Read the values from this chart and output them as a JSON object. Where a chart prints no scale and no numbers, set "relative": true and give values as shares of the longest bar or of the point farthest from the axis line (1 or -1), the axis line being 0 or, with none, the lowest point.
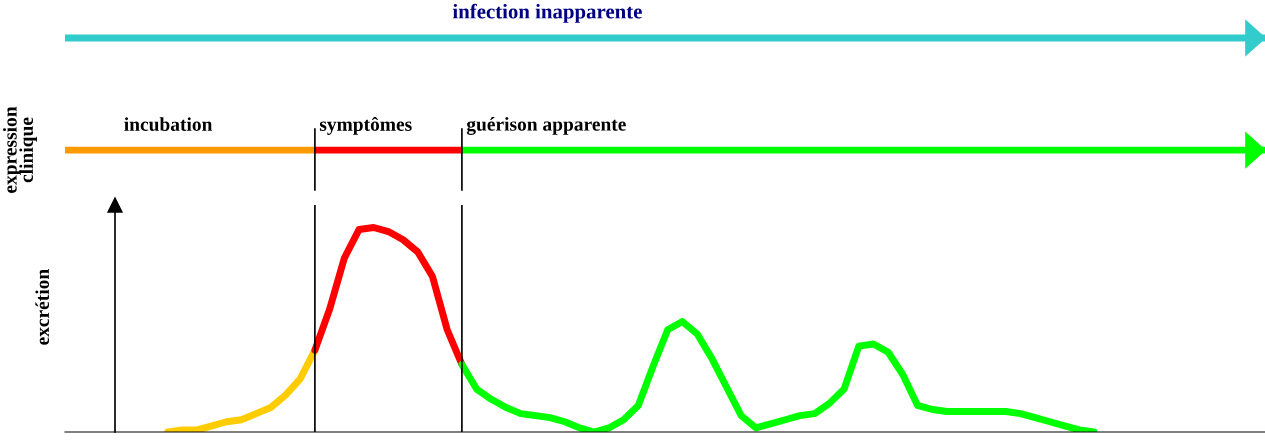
{
  "chart_data": [
    {
      "type": "line",
      "relative": true,
      "ylabel": "excrétion",
      "grid": false,
      "line_style": "solid",
      "categories": [
        null,
        null,
        null,
        null,
        null,
        null,
        null,
        null,
        null,
        null,
        null,
        null,
        null,
        null,
        null,
        null,
        null,
        null,
        null,
        null,
        null,
        null,
        null,
        null,
        null,
        null,
        null,
        null,
        null,
        null,
        null,
        null,
        null,
        null,
        null,
        null,
        null,
        null,
        null,
        null,
        null,
        null,
        null,
        null,
        null,
        null,
        null,
        null,
        null,
        null,
        null,
        null,
        null,
        null,
        null,
        null,
        null,
        null,
        null,
        null,
        null,
        null,
        null,
        null,
        null,
        null,
        null,
        null,
        null,
        null,
        null,
        null,
        null,
        null,
        null,
        null,
        null,
        null,
        null,
        null,
        null,
        null
      ],
      "series": [
        {
          "color": "#ffcc00",
          "values": [
            null,
            null,
            null,
            null,
            null,
            null,
            null,
            0,
            0.01,
            0.01,
            0.03,
            0.05,
            0.06,
            0.09,
            0.12,
            0.18,
            0.26,
            0.4,
            null,
            null,
            null,
            null,
            null,
            null,
            null,
            null,
            null,
            null,
            null,
            null,
            null,
            null,
            null,
            null,
            null,
            null,
            null,
            null,
            null,
            null,
            null,
            null,
            null,
            null,
            null,
            null,
            null,
            null,
            null,
            null,
            null,
            null,
            null,
            null,
            null,
            null,
            null,
            null,
            null,
            null,
            null,
            null,
            null,
            null,
            null,
            null,
            null,
            null,
            null,
            null,
            null,
            null,
            null,
            null,
            null,
            null,
            null,
            null,
            null,
            null,
            null,
            null
          ]
        },
        {
          "color": "#ff0000",
          "values": [
            null,
            null,
            null,
            null,
            null,
            null,
            null,
            null,
            null,
            null,
            null,
            null,
            null,
            null,
            null,
            null,
            null,
            0.4,
            0.6,
            0.85,
            0.99,
            1.0,
            0.98,
            0.94,
            0.88,
            0.76,
            0.5,
            0.33,
            null,
            null,
            null,
            null,
            null,
            null,
            null,
            null,
            null,
            null,
            null,
            null,
            null,
            null,
            null,
            null,
            null,
            null,
            null,
            null,
            null,
            null,
            null,
            null,
            null,
            null,
            null,
            null,
            null,
            null,
            null,
            null,
            null,
            null,
            null,
            null,
            null,
            null,
            null,
            null,
            null,
            null,
            null,
            null,
            null,
            null,
            null,
            null,
            null,
            null,
            null,
            null,
            null,
            null
          ]
        },
        {
          "color": "#00ff00",
          "values": [
            null,
            null,
            null,
            null,
            null,
            null,
            null,
            null,
            null,
            null,
            null,
            null,
            null,
            null,
            null,
            null,
            null,
            null,
            null,
            null,
            null,
            null,
            null,
            null,
            null,
            null,
            null,
            0.33,
            0.21,
            0.16,
            0.12,
            0.09,
            0.08,
            0.07,
            0.05,
            0.02,
            0,
            0.02,
            0.06,
            0.13,
            0.32,
            0.5,
            0.54,
            0.48,
            0.36,
            0.22,
            0.08,
            0.02,
            0.04,
            0.06,
            0.08,
            0.09,
            0.14,
            0.21,
            0.42,
            0.43,
            0.39,
            0.28,
            0.13,
            0.11,
            0.1,
            0.1,
            0.1,
            0.1,
            0.1,
            0.09,
            0.07,
            0.05,
            0.03,
            0.01,
            0,
            null,
            null,
            null,
            null,
            null,
            null,
            null,
            null,
            null,
            null,
            null
          ]
        }
      ]
    },
    {
      "type": "other",
      "annotations": [
        "infection inapparente",
        "incubation",
        "symptômes",
        "guérison apparente",
        "expression clinique"
      ],
      "colors": [
        "#33cccc",
        "#ff9900",
        "#ff0000",
        "#00ff00"
      ]
    }
  ]
}
